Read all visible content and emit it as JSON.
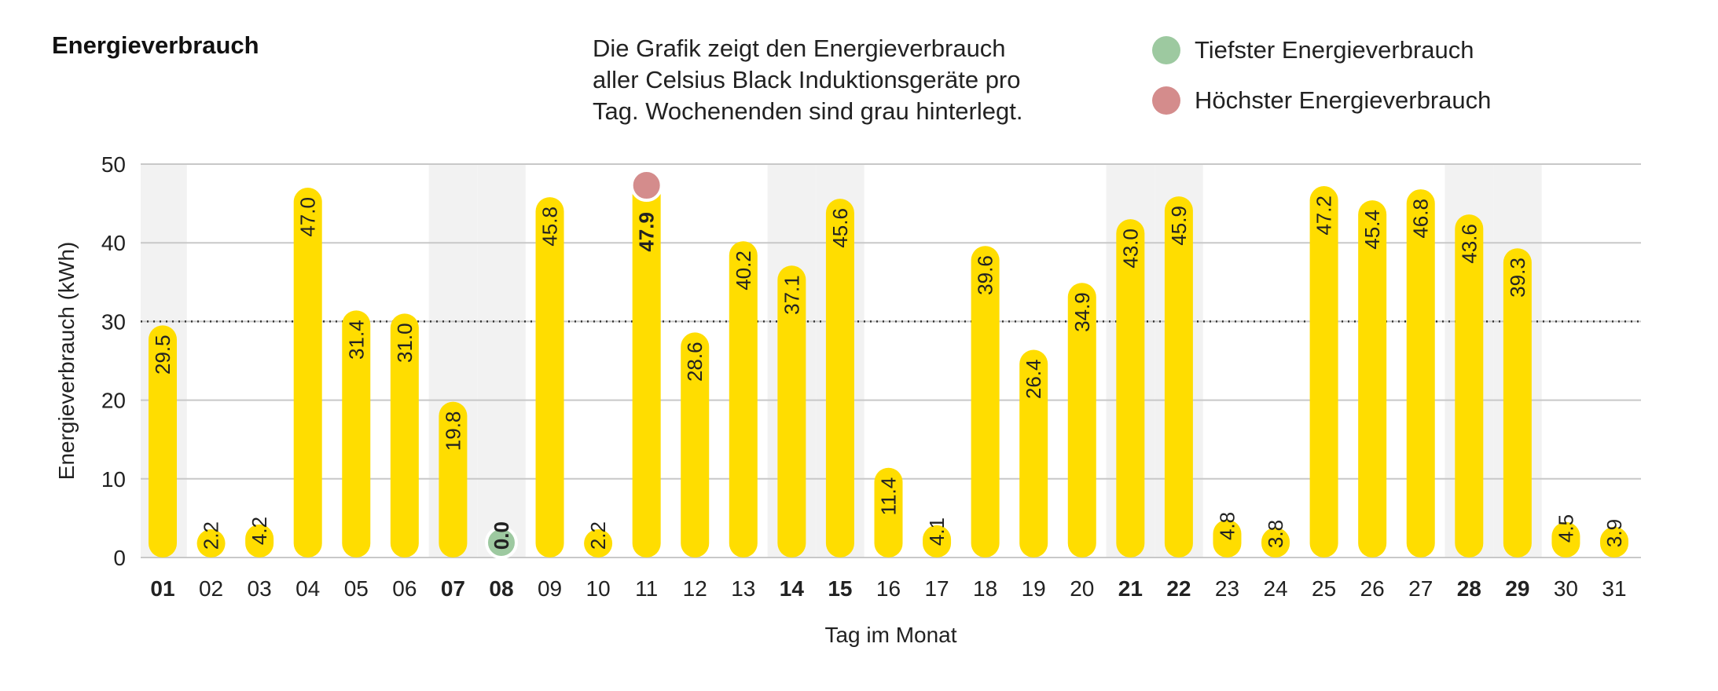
{
  "title": "Energieverbrauch",
  "description": [
    "Die Grafik zeigt den Energieverbrauch",
    "aller Celsius Black Induktionsgeräte pro",
    "Tag. Wochenenden sind grau hinterlegt."
  ],
  "legend": [
    {
      "label": "Tiefster Energieverbrauch",
      "color": "#9dc9a0"
    },
    {
      "label": "Höchster Energieverbrauch",
      "color": "#d48c8c"
    }
  ],
  "colors": {
    "bar": "#ffdd00",
    "weekend": "#f2f2f2",
    "grid": "#c8c8c8",
    "min": "#9dc9a0",
    "max": "#d48c8c"
  },
  "chart_data": {
    "type": "bar",
    "xlabel": "Tag im Monat",
    "ylabel": "Energieverbrauch (kWh)",
    "ylim": [
      0,
      50
    ],
    "yticks": [
      "0",
      "10",
      "20",
      "30",
      "40",
      "50"
    ],
    "grid": true,
    "reference_line": 30,
    "categories": [
      "01",
      "02",
      "03",
      "04",
      "05",
      "06",
      "07",
      "08",
      "09",
      "10",
      "11",
      "12",
      "13",
      "14",
      "15",
      "16",
      "17",
      "18",
      "19",
      "20",
      "21",
      "22",
      "23",
      "24",
      "25",
      "26",
      "27",
      "28",
      "29",
      "30",
      "31"
    ],
    "values": [
      29.5,
      2.2,
      4.2,
      47.0,
      31.4,
      31.0,
      19.8,
      0.0,
      45.8,
      2.2,
      47.9,
      28.6,
      40.2,
      37.1,
      45.6,
      11.4,
      4.1,
      39.6,
      26.4,
      34.9,
      43.0,
      45.9,
      4.8,
      3.8,
      47.2,
      45.4,
      46.8,
      43.6,
      39.3,
      4.5,
      3.9
    ],
    "labels": [
      "29.5",
      "2.2",
      "4.2",
      "47.0",
      "31.4",
      "31.0",
      "19.8",
      "0.0",
      "45.8",
      "2.2",
      "47.9",
      "28.6",
      "40.2",
      "37.1",
      "45.6",
      "11.4",
      "4.1",
      "39.6",
      "26.4",
      "34.9",
      "43.0",
      "45.9",
      "4.8",
      "3.8",
      "47.2",
      "45.4",
      "46.8",
      "43.6",
      "39.3",
      "4.5",
      "3.9"
    ],
    "weekend_days": [
      "01",
      "07",
      "08",
      "14",
      "15",
      "21",
      "22",
      "28",
      "29"
    ],
    "min_day": "08",
    "max_day": "11",
    "legend_position": "top-right"
  }
}
